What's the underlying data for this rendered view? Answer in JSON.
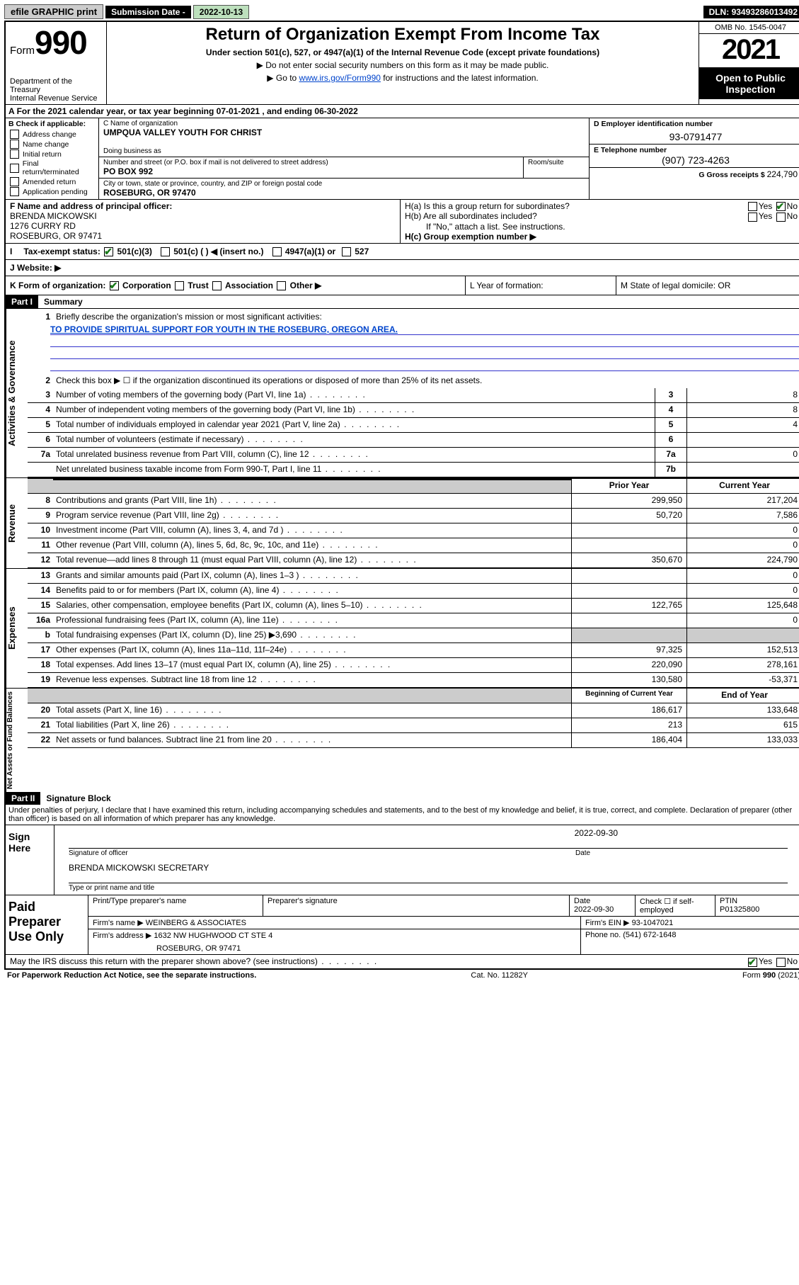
{
  "topbar": {
    "efile": "efile GRAPHIC print",
    "subdate_label": "Submission Date - ",
    "subdate": "2022-10-13",
    "dln_label": "DLN: ",
    "dln": "93493286013492"
  },
  "header": {
    "form_word": "Form",
    "form_num": "990",
    "dept": "Department of the Treasury\nInternal Revenue Service",
    "title": "Return of Organization Exempt From Income Tax",
    "subtitle": "Under section 501(c), 527, or 4947(a)(1) of the Internal Revenue Code (except private foundations)",
    "note1": "▶ Do not enter social security numbers on this form as it may be made public.",
    "note2_pre": "▶ Go to ",
    "note2_link": "www.irs.gov/Form990",
    "note2_post": " for instructions and the latest information.",
    "omb": "OMB No. 1545-0047",
    "year": "2021",
    "open": "Open to Public Inspection"
  },
  "period": {
    "text": "For the 2021 calendar year, or tax year beginning 07-01-2021   , and ending 06-30-2022"
  },
  "boxB": {
    "head": "B Check if applicable:",
    "items": [
      "Address change",
      "Name change",
      "Initial return",
      "Final return/terminated",
      "Amended return",
      "Application pending"
    ]
  },
  "boxC": {
    "name_label": "C Name of organization",
    "name": "UMPQUA VALLEY YOUTH FOR CHRIST",
    "dba_label": "Doing business as",
    "addr_label": "Number and street (or P.O. box if mail is not delivered to street address)",
    "room_label": "Room/suite",
    "addr": "PO BOX 992",
    "city_label": "City or town, state or province, country, and ZIP or foreign postal code",
    "city": "ROSEBURG, OR  97470"
  },
  "boxD": {
    "ein_label": "D Employer identification number",
    "ein": "93-0791477",
    "phone_label": "E Telephone number",
    "phone": "(907) 723-4263",
    "gross_label": "G Gross receipts $ ",
    "gross": "224,790"
  },
  "officer": {
    "label": "F Name and address of principal officer:",
    "name": "BRENDA MICKOWSKI",
    "addr1": "1276 CURRY RD",
    "addr2": "ROSEBURG, OR  97471"
  },
  "boxH": {
    "ha": "H(a)  Is this a group return for subordinates?",
    "hb": "H(b)  Are all subordinates included?",
    "hb_note": "If \"No,\" attach a list. See instructions.",
    "hc": "H(c)  Group exemption number ▶"
  },
  "status": {
    "lead": "I",
    "label": "Tax-exempt status:",
    "c3": "501(c)(3)",
    "c_other": "501(c) (   ) ◀ (insert no.)",
    "a1": "4947(a)(1) or",
    "s527": "527"
  },
  "website": {
    "lead": "J",
    "label": "Website: ▶"
  },
  "rowK": {
    "label": "K Form of organization:",
    "corp": "Corporation",
    "trust": "Trust",
    "assoc": "Association",
    "other": "Other ▶",
    "L": "L Year of formation:",
    "M": "M State of legal domicile: OR"
  },
  "part1": {
    "header": "Part I",
    "title": "Summary"
  },
  "governance": {
    "side": "Activities & Governance",
    "q1_label": "Briefly describe the organization's mission or most significant activities:",
    "q1_val": "TO PROVIDE SPIRITUAL SUPPORT FOR YOUTH IN THE ROSEBURG, OREGON AREA.",
    "q2": "Check this box ▶ ☐  if the organization discontinued its operations or disposed of more than 25% of its net assets.",
    "rows": [
      {
        "num": "3",
        "text": "Number of voting members of the governing body (Part VI, line 1a)",
        "box": "3",
        "val": "8"
      },
      {
        "num": "4",
        "text": "Number of independent voting members of the governing body (Part VI, line 1b)",
        "box": "4",
        "val": "8"
      },
      {
        "num": "5",
        "text": "Total number of individuals employed in calendar year 2021 (Part V, line 2a)",
        "box": "5",
        "val": "4"
      },
      {
        "num": "6",
        "text": "Total number of volunteers (estimate if necessary)",
        "box": "6",
        "val": ""
      },
      {
        "num": "7a",
        "text": "Total unrelated business revenue from Part VIII, column (C), line 12",
        "box": "7a",
        "val": "0"
      },
      {
        "num": "",
        "text": "Net unrelated business taxable income from Form 990-T, Part I, line 11",
        "box": "7b",
        "val": ""
      }
    ]
  },
  "revenue": {
    "side": "Revenue",
    "prior": "Prior Year",
    "current": "Current Year",
    "rows": [
      {
        "num": "8",
        "text": "Contributions and grants (Part VIII, line 1h)",
        "py": "299,950",
        "cy": "217,204"
      },
      {
        "num": "9",
        "text": "Program service revenue (Part VIII, line 2g)",
        "py": "50,720",
        "cy": "7,586"
      },
      {
        "num": "10",
        "text": "Investment income (Part VIII, column (A), lines 3, 4, and 7d )",
        "py": "",
        "cy": "0"
      },
      {
        "num": "11",
        "text": "Other revenue (Part VIII, column (A), lines 5, 6d, 8c, 9c, 10c, and 11e)",
        "py": "",
        "cy": "0"
      },
      {
        "num": "12",
        "text": "Total revenue—add lines 8 through 11 (must equal Part VIII, column (A), line 12)",
        "py": "350,670",
        "cy": "224,790"
      }
    ]
  },
  "expenses": {
    "side": "Expenses",
    "rows": [
      {
        "num": "13",
        "text": "Grants and similar amounts paid (Part IX, column (A), lines 1–3 )",
        "py": "",
        "cy": "0"
      },
      {
        "num": "14",
        "text": "Benefits paid to or for members (Part IX, column (A), line 4)",
        "py": "",
        "cy": "0"
      },
      {
        "num": "15",
        "text": "Salaries, other compensation, employee benefits (Part IX, column (A), lines 5–10)",
        "py": "122,765",
        "cy": "125,648"
      },
      {
        "num": "16a",
        "text": "Professional fundraising fees (Part IX, column (A), line 11e)",
        "py": "",
        "cy": "0"
      },
      {
        "num": "b",
        "text": "Total fundraising expenses (Part IX, column (D), line 25) ▶3,690",
        "py": "shaded",
        "cy": "shaded"
      },
      {
        "num": "17",
        "text": "Other expenses (Part IX, column (A), lines 11a–11d, 11f–24e)",
        "py": "97,325",
        "cy": "152,513"
      },
      {
        "num": "18",
        "text": "Total expenses. Add lines 13–17 (must equal Part IX, column (A), line 25)",
        "py": "220,090",
        "cy": "278,161"
      },
      {
        "num": "19",
        "text": "Revenue less expenses. Subtract line 18 from line 12",
        "py": "130,580",
        "cy": "-53,371"
      }
    ]
  },
  "netassets": {
    "side": "Net Assets or Fund Balances",
    "begin": "Beginning of Current Year",
    "end": "End of Year",
    "rows": [
      {
        "num": "20",
        "text": "Total assets (Part X, line 16)",
        "py": "186,617",
        "cy": "133,648"
      },
      {
        "num": "21",
        "text": "Total liabilities (Part X, line 26)",
        "py": "213",
        "cy": "615"
      },
      {
        "num": "22",
        "text": "Net assets or fund balances. Subtract line 21 from line 20",
        "py": "186,404",
        "cy": "133,033"
      }
    ]
  },
  "part2": {
    "header": "Part II",
    "title": "Signature Block",
    "declare": "Under penalties of perjury, I declare that I have examined this return, including accompanying schedules and statements, and to the best of my knowledge and belief, it is true, correct, and complete. Declaration of preparer (other than officer) is based on all information of which preparer has any knowledge."
  },
  "sign": {
    "label": "Sign Here",
    "sig": "Signature of officer",
    "date": "Date",
    "date_val": "2022-09-30",
    "name": "BRENDA MICKOWSKI SECRETARY",
    "name_label": "Type or print name and title"
  },
  "prep": {
    "label": "Paid Preparer Use Only",
    "h_name": "Print/Type preparer's name",
    "h_sig": "Preparer's signature",
    "h_date": "Date",
    "date_val": "2022-09-30",
    "check": "Check ☐ if self-employed",
    "ptin_label": "PTIN",
    "ptin": "P01325800",
    "firm_label": "Firm's name    ▶",
    "firm": "WEINBERG & ASSOCIATES",
    "ein_label": "Firm's EIN ▶",
    "ein": "93-1047021",
    "addr_label": "Firm's address ▶",
    "addr1": "1632 NW HUGHWOOD CT STE 4",
    "addr2": "ROSEBURG, OR  97471",
    "phone_label": "Phone no. ",
    "phone": "(541) 672-1648"
  },
  "discuss": {
    "text": "May the IRS discuss this return with the preparer shown above? (see instructions)",
    "yes": "Yes",
    "no": "No"
  },
  "footer": {
    "left": "For Paperwork Reduction Act Notice, see the separate instructions.",
    "mid": "Cat. No. 11282Y",
    "right": "Form 990 (2021)"
  }
}
